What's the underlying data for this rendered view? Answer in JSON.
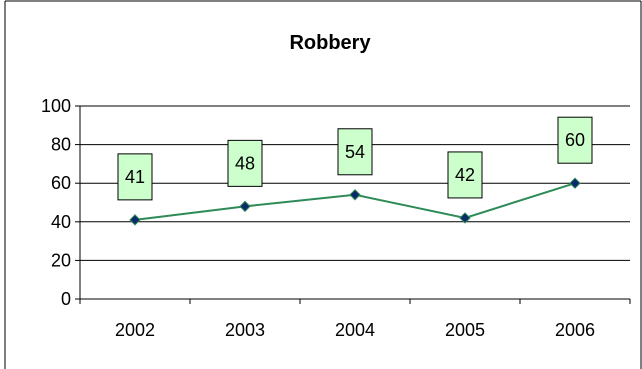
{
  "chart_data": {
    "type": "line",
    "title": "Robbery",
    "xlabel": "",
    "ylabel": "",
    "categories": [
      "2002",
      "2003",
      "2004",
      "2005",
      "2006"
    ],
    "series": [
      {
        "values": [
          41,
          48,
          54,
          42,
          60
        ]
      }
    ],
    "ylim": [
      0,
      100
    ],
    "yticks": [
      "0",
      "20",
      "40",
      "60",
      "80",
      "100"
    ],
    "data_labels": [
      "41",
      "48",
      "54",
      "42",
      "60"
    ],
    "grid": true,
    "legend": "none",
    "colors": {
      "line": "#2e8b57",
      "marker_fill": "#0b2a6b",
      "marker_stroke": "#2e8b57",
      "label_bg": "#ccffcc",
      "label_border": "#000000",
      "gridline": "#000000",
      "frame": "#000000"
    }
  }
}
